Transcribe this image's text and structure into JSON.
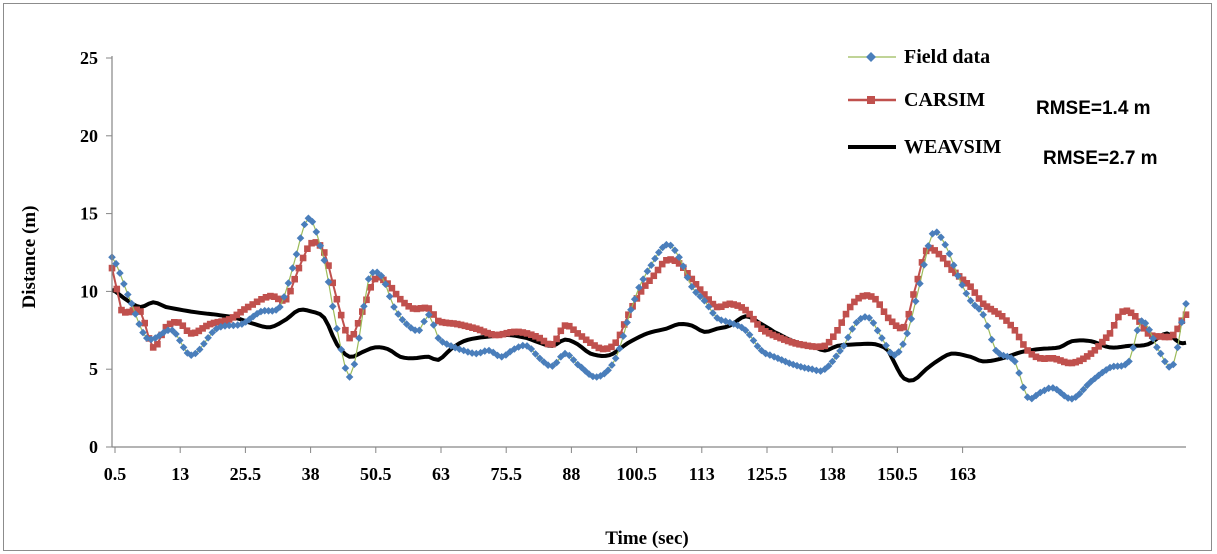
{
  "chart_data": {
    "type": "line",
    "title": "",
    "xlabel": "Time (sec)",
    "ylabel": "Distance (m)",
    "ylim": [
      0,
      25
    ],
    "y_ticks": [
      0,
      5,
      10,
      15,
      20,
      25
    ],
    "x_tick_labels": [
      "0.5",
      "13",
      "25.5",
      "38",
      "50.5",
      "63",
      "75.5",
      "88",
      "100.5",
      "113",
      "125.5",
      "138",
      "150.5",
      "163"
    ],
    "xlim": [
      0.5,
      170
    ],
    "grid": false,
    "legend_position": "top-right",
    "series": [
      {
        "name": "Field data",
        "color": "#4a7ebb",
        "line_color": "#9bbb59",
        "marker": "diamond",
        "points": [
          [
            0.5,
            12.2
          ],
          [
            3,
            9.8
          ],
          [
            6,
            7.0
          ],
          [
            10,
            7.5
          ],
          [
            13,
            5.9
          ],
          [
            17,
            7.6
          ],
          [
            21,
            7.9
          ],
          [
            24,
            8.7
          ],
          [
            27,
            9.0
          ],
          [
            29,
            11.5
          ],
          [
            31.5,
            14.7
          ],
          [
            34,
            12.0
          ],
          [
            36,
            7.6
          ],
          [
            38,
            4.5
          ],
          [
            39.5,
            7.0
          ],
          [
            41,
            10.8
          ],
          [
            43,
            11.0
          ],
          [
            45,
            9.0
          ],
          [
            47,
            7.9
          ],
          [
            49,
            7.5
          ],
          [
            50.5,
            8.5
          ],
          [
            52,
            7.0
          ],
          [
            54,
            6.5
          ],
          [
            56,
            6.2
          ],
          [
            58,
            6.0
          ],
          [
            60,
            6.2
          ],
          [
            62,
            5.8
          ],
          [
            64,
            6.3
          ],
          [
            66,
            6.5
          ],
          [
            68,
            5.7
          ],
          [
            70,
            5.2
          ],
          [
            72,
            6.0
          ],
          [
            74,
            5.3
          ],
          [
            77,
            4.5
          ],
          [
            80,
            5.7
          ],
          [
            83,
            9.5
          ],
          [
            85,
            11.3
          ],
          [
            88,
            13.0
          ],
          [
            90,
            12.2
          ],
          [
            92,
            10.3
          ],
          [
            94,
            9.4
          ],
          [
            96,
            8.3
          ],
          [
            98,
            8.0
          ],
          [
            100.5,
            7.5
          ],
          [
            103,
            6.2
          ],
          [
            105,
            5.8
          ],
          [
            108,
            5.3
          ],
          [
            111,
            5.0
          ],
          [
            113,
            5.0
          ],
          [
            116,
            6.5
          ],
          [
            118,
            8.0
          ],
          [
            120,
            8.3
          ],
          [
            122,
            7.0
          ],
          [
            124,
            5.9
          ],
          [
            126,
            7.3
          ],
          [
            128,
            10.5
          ],
          [
            130,
            13.7
          ],
          [
            132,
            13.0
          ],
          [
            134,
            11.0
          ],
          [
            136,
            9.4
          ],
          [
            138,
            8.5
          ],
          [
            140,
            6.2
          ],
          [
            143,
            5.5
          ],
          [
            145,
            3.2
          ],
          [
            147,
            3.5
          ],
          [
            149,
            3.8
          ],
          [
            152,
            3.1
          ],
          [
            155,
            4.2
          ],
          [
            158,
            5.1
          ],
          [
            161,
            5.5
          ],
          [
            163,
            8.1
          ],
          [
            166,
            6.0
          ],
          [
            168,
            5.3
          ],
          [
            170,
            9.2
          ]
        ]
      },
      {
        "name": "CARSIM",
        "color": "#c0504d",
        "line_color": "#c0504d",
        "marker": "square",
        "points": [
          [
            0.5,
            11.5
          ],
          [
            2,
            8.8
          ],
          [
            5,
            8.7
          ],
          [
            7,
            6.4
          ],
          [
            9,
            7.7
          ],
          [
            11,
            8.0
          ],
          [
            13,
            7.3
          ],
          [
            16,
            7.9
          ],
          [
            19,
            8.2
          ],
          [
            22,
            9.0
          ],
          [
            25.5,
            9.7
          ],
          [
            28,
            9.5
          ],
          [
            30,
            11.5
          ],
          [
            32,
            13.1
          ],
          [
            34,
            12.5
          ],
          [
            36,
            9.5
          ],
          [
            38,
            7.0
          ],
          [
            40,
            8.7
          ],
          [
            42,
            10.8
          ],
          [
            44,
            10.5
          ],
          [
            46,
            9.5
          ],
          [
            48,
            8.9
          ],
          [
            50.5,
            8.9
          ],
          [
            52,
            8.1
          ],
          [
            55,
            7.9
          ],
          [
            58,
            7.6
          ],
          [
            61,
            7.2
          ],
          [
            64,
            7.4
          ],
          [
            66,
            7.3
          ],
          [
            68,
            7.0
          ],
          [
            70,
            6.6
          ],
          [
            72,
            7.8
          ],
          [
            74,
            7.3
          ],
          [
            76,
            6.7
          ],
          [
            78,
            6.3
          ],
          [
            80,
            6.7
          ],
          [
            82,
            8.5
          ],
          [
            84,
            10.0
          ],
          [
            86,
            11.0
          ],
          [
            88,
            12.0
          ],
          [
            90,
            11.8
          ],
          [
            92,
            10.8
          ],
          [
            94,
            9.8
          ],
          [
            96,
            9.0
          ],
          [
            98,
            9.2
          ],
          [
            100.5,
            8.8
          ],
          [
            103,
            7.6
          ],
          [
            106,
            7.0
          ],
          [
            109,
            6.6
          ],
          [
            113,
            6.5
          ],
          [
            115,
            7.5
          ],
          [
            117,
            9.0
          ],
          [
            119,
            9.7
          ],
          [
            121,
            9.5
          ],
          [
            123,
            8.3
          ],
          [
            125.5,
            7.7
          ],
          [
            127,
            9.8
          ],
          [
            129,
            12.6
          ],
          [
            131,
            12.4
          ],
          [
            133,
            11.4
          ],
          [
            136,
            10.3
          ],
          [
            138,
            9.2
          ],
          [
            141,
            8.4
          ],
          [
            143,
            7.5
          ],
          [
            145,
            6.2
          ],
          [
            147,
            5.7
          ],
          [
            149,
            5.7
          ],
          [
            152,
            5.4
          ],
          [
            155,
            6.0
          ],
          [
            158,
            7.3
          ],
          [
            160,
            8.7
          ],
          [
            162,
            8.4
          ],
          [
            164,
            7.3
          ],
          [
            166,
            7.1
          ],
          [
            168,
            7.2
          ],
          [
            170,
            8.5
          ]
        ]
      },
      {
        "name": "WEAVSIM",
        "color": "#000000",
        "line_color": "#000000",
        "marker": "none",
        "points": [
          [
            0.5,
            10.1
          ],
          [
            3,
            9.4
          ],
          [
            5,
            9.0
          ],
          [
            7,
            9.3
          ],
          [
            9,
            9.0
          ],
          [
            13,
            8.7
          ],
          [
            17,
            8.5
          ],
          [
            20,
            8.3
          ],
          [
            23,
            7.9
          ],
          [
            25.5,
            7.7
          ],
          [
            28,
            8.2
          ],
          [
            30,
            8.8
          ],
          [
            32,
            8.7
          ],
          [
            34,
            8.3
          ],
          [
            36,
            6.6
          ],
          [
            38,
            5.8
          ],
          [
            40,
            6.1
          ],
          [
            42,
            6.4
          ],
          [
            44,
            6.3
          ],
          [
            46,
            5.8
          ],
          [
            48,
            5.7
          ],
          [
            50.5,
            5.8
          ],
          [
            52,
            5.6
          ],
          [
            54,
            6.3
          ],
          [
            56,
            6.8
          ],
          [
            58,
            7.0
          ],
          [
            60,
            7.1
          ],
          [
            63,
            7.2
          ],
          [
            66,
            7.0
          ],
          [
            68,
            6.7
          ],
          [
            70,
            6.5
          ],
          [
            72,
            6.9
          ],
          [
            74,
            6.6
          ],
          [
            76,
            6.0
          ],
          [
            79,
            5.9
          ],
          [
            82,
            6.7
          ],
          [
            85,
            7.3
          ],
          [
            88,
            7.6
          ],
          [
            90,
            7.9
          ],
          [
            92,
            7.8
          ],
          [
            94,
            7.4
          ],
          [
            96,
            7.6
          ],
          [
            98,
            7.8
          ],
          [
            100.5,
            8.4
          ],
          [
            103,
            7.9
          ],
          [
            105,
            7.4
          ],
          [
            108,
            6.8
          ],
          [
            111,
            6.5
          ],
          [
            113,
            6.2
          ],
          [
            115,
            6.5
          ],
          [
            118,
            6.6
          ],
          [
            121,
            6.6
          ],
          [
            123,
            6.2
          ],
          [
            124.5,
            5.0
          ],
          [
            125.5,
            4.4
          ],
          [
            127,
            4.3
          ],
          [
            129,
            5.0
          ],
          [
            131,
            5.6
          ],
          [
            133,
            6.0
          ],
          [
            136,
            5.8
          ],
          [
            138,
            5.5
          ],
          [
            141,
            5.7
          ],
          [
            144,
            6.1
          ],
          [
            147,
            6.3
          ],
          [
            150,
            6.4
          ],
          [
            152,
            6.8
          ],
          [
            155,
            6.8
          ],
          [
            158,
            6.4
          ],
          [
            161,
            6.5
          ],
          [
            164,
            6.6
          ],
          [
            167,
            7.3
          ],
          [
            169,
            6.7
          ],
          [
            170,
            6.7
          ]
        ]
      }
    ],
    "annotations": [
      {
        "text": "RMSE=1.4 m",
        "series": "CARSIM"
      },
      {
        "text": "RMSE=2.7 m",
        "series": "WEAVSIM"
      }
    ]
  }
}
